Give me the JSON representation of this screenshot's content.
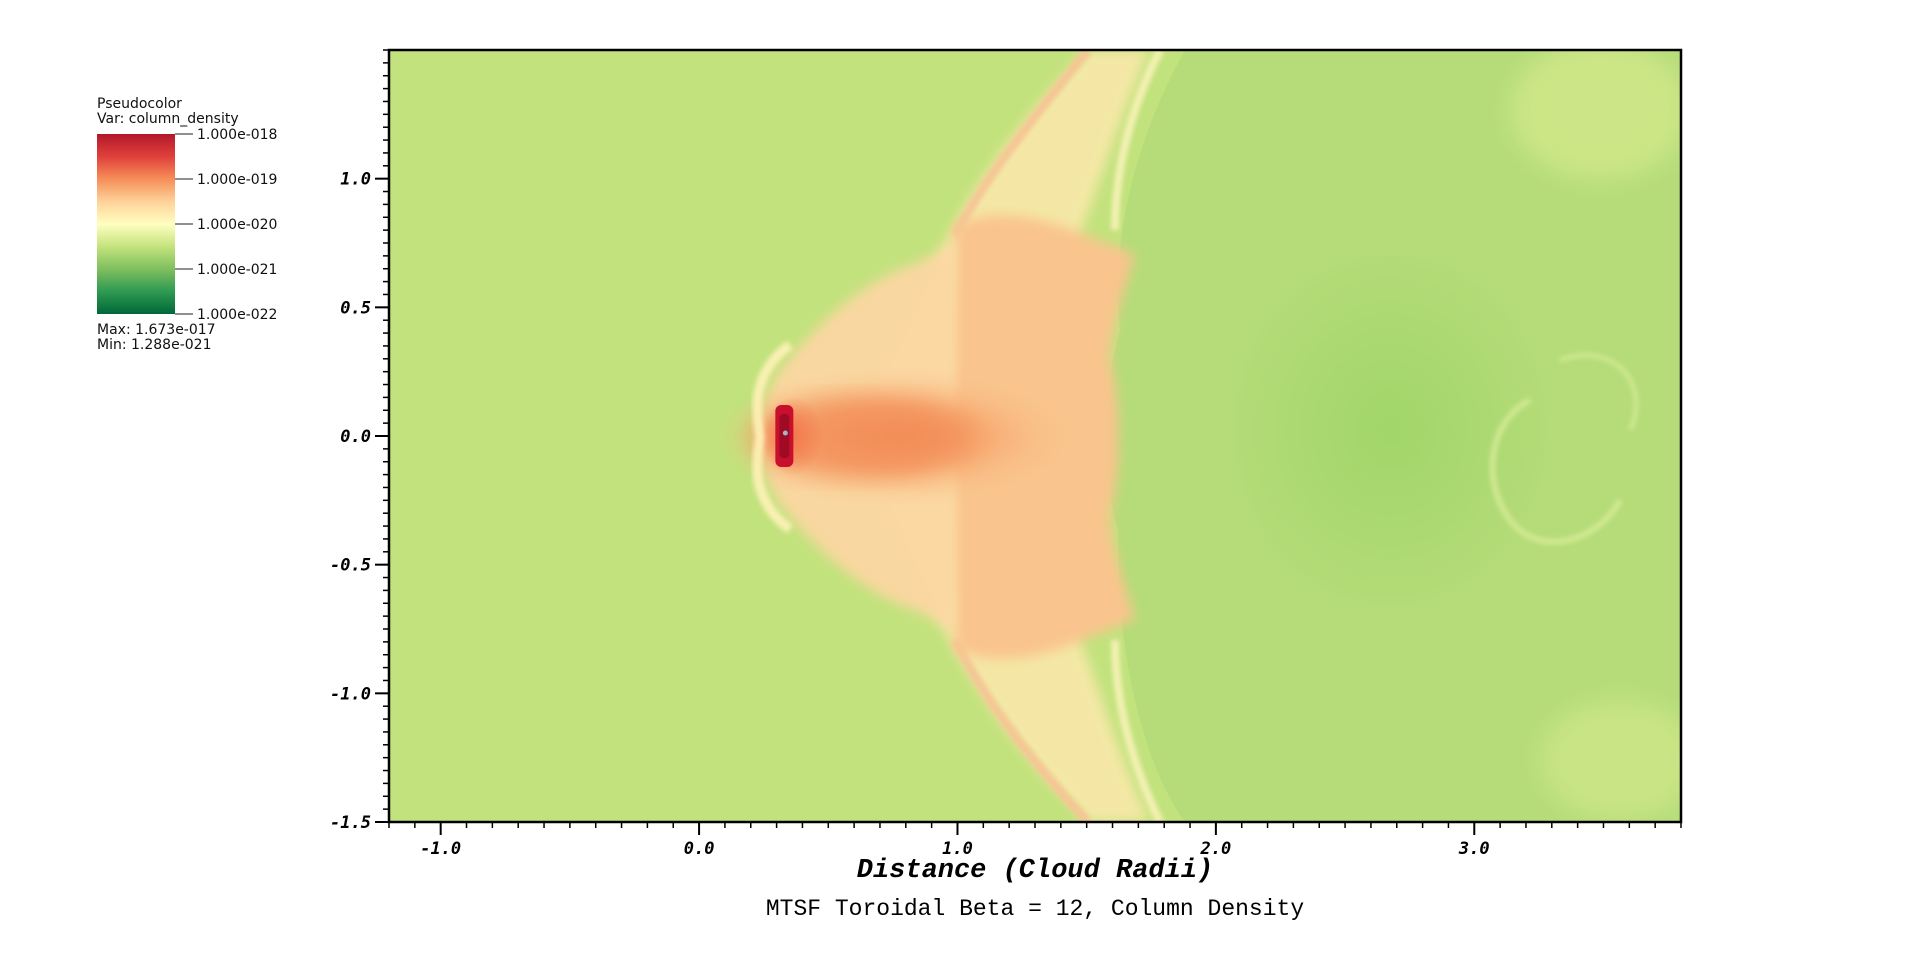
{
  "chart_data": {
    "type": "heatmap",
    "title": "MTSF Toroidal Beta = 12, Column Density",
    "xlabel": "Distance (Cloud Radii)",
    "ylabel": "",
    "xlim": [
      -1.2,
      3.8
    ],
    "ylim": [
      -1.5,
      1.5
    ],
    "x_ticks": [
      -1.0,
      0.0,
      1.0,
      2.0,
      3.0
    ],
    "x_tick_labels": [
      "-1.0",
      "0.0",
      "1.0",
      "2.0",
      "3.0"
    ],
    "y_ticks": [
      1.0,
      0.5,
      0.0,
      -0.5,
      -1.0,
      -1.5
    ],
    "y_tick_labels": [
      "1.0",
      "0.5",
      "0.0",
      "-0.5",
      "-1.0",
      "-1.5"
    ],
    "x_minor_step": 0.1,
    "y_minor_step": 0.05,
    "grid": false,
    "legend": {
      "position": "top-left",
      "header": "Pseudocolor",
      "variable_line": "Var: column_density",
      "scale": "log",
      "levels": [
        {
          "value": 1e-18,
          "label": "1.000e-018"
        },
        {
          "value": 1e-19,
          "label": "1.000e-019"
        },
        {
          "value": 1e-20,
          "label": "1.000e-020"
        },
        {
          "value": 1e-21,
          "label": "1.000e-021"
        },
        {
          "value": 1e-22,
          "label": "1.000e-022"
        }
      ],
      "max_text": "Max:  1.673e-017",
      "min_text": "Min:  1.288e-021",
      "colormap": [
        "#b2182b",
        "#e0403a",
        "#f68e58",
        "#fdd29a",
        "#ffffbf",
        "#c4e37e",
        "#7fbf5f",
        "#2e9a52",
        "#006837"
      ]
    },
    "background_color": "#c2e27d",
    "features": [
      {
        "name": "dense-core",
        "x": 0.33,
        "y": 0.0,
        "color": "#c8102e"
      }
    ]
  }
}
